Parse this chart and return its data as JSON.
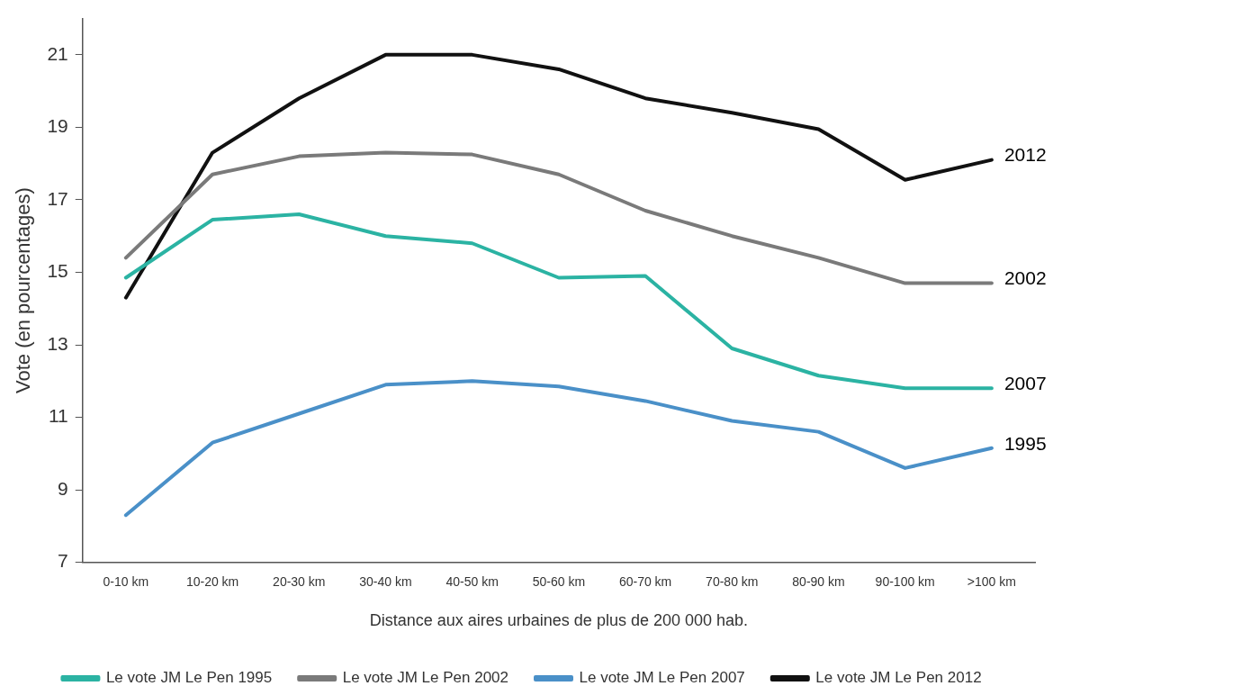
{
  "chart_data": {
    "type": "line",
    "xlabel": "Distance aux aires urbaines de plus de 200 000 hab.",
    "ylabel": "Vote (en pourcentages)",
    "categories": [
      "0-10 km",
      "10-20 km",
      "20-30 km",
      "30-40 km",
      "40-50 km",
      "50-60 km",
      "60-70 km",
      "70-80 km",
      "80-90 km",
      "90-100 km",
      ">100 km"
    ],
    "series": [
      {
        "name": "Le vote JM Le Pen 1995",
        "color": "#2bb3a3",
        "values": [
          14.85,
          16.45,
          16.6,
          16.0,
          15.8,
          14.85,
          14.9,
          12.9,
          12.15,
          11.8,
          11.8
        ]
      },
      {
        "name": "Le vote JM Le Pen 2002",
        "color": "#7a7a7a",
        "values": [
          15.4,
          17.7,
          18.2,
          18.3,
          18.25,
          17.7,
          16.7,
          16.0,
          15.4,
          14.7,
          14.7
        ]
      },
      {
        "name": "Le vote JM Le Pen 2007",
        "color": "#4a90c8",
        "values": [
          8.3,
          10.3,
          11.1,
          11.9,
          12.0,
          11.85,
          11.45,
          10.9,
          10.6,
          9.6,
          10.15
        ]
      },
      {
        "name": "Le vote JM Le Pen 2012",
        "color": "#111111",
        "values": [
          14.3,
          18.3,
          19.8,
          21.0,
          21.0,
          20.6,
          19.8,
          19.4,
          18.95,
          17.55,
          18.1
        ]
      }
    ],
    "ylim": [
      7,
      22
    ],
    "yticks": [
      7,
      9,
      11,
      13,
      15,
      17,
      19,
      21
    ],
    "grid": false,
    "legend": "bottom",
    "marker": "none",
    "line_style": "solid",
    "annotations": [
      {
        "text": "2012",
        "x": ">100 km",
        "y": 18.1
      },
      {
        "text": "2002",
        "x": ">100 km",
        "y": 14.7
      },
      {
        "text": "2007",
        "x": ">100 km",
        "y": 11.8
      },
      {
        "text": "1995",
        "x": ">100 km",
        "y": 10.15
      }
    ]
  }
}
